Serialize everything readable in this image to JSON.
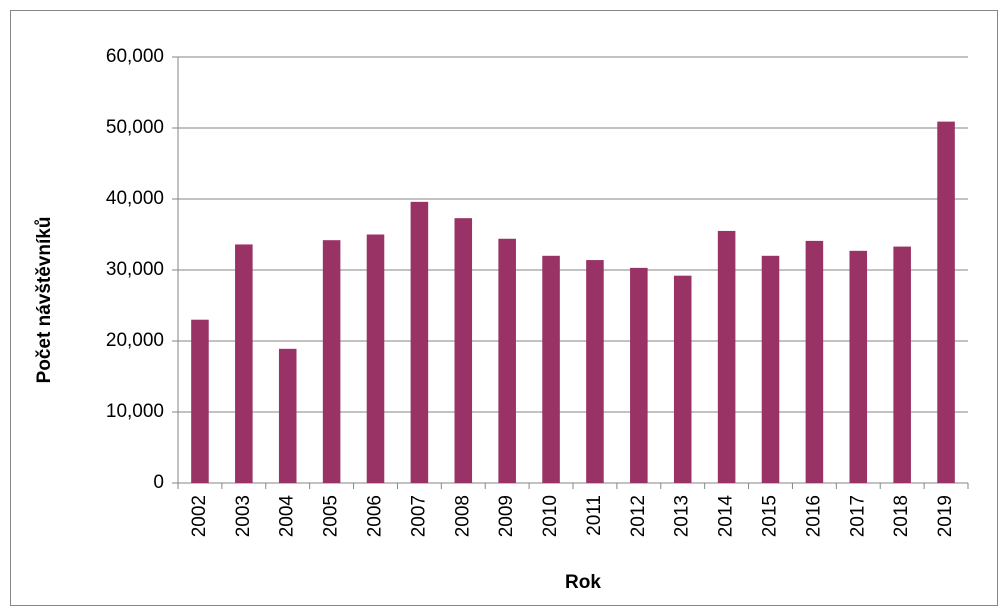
{
  "chart_data": {
    "type": "bar",
    "xlabel": "Rok",
    "ylabel": "Počet návštěvníků",
    "categories": [
      "2002",
      "2003",
      "2004",
      "2005",
      "2006",
      "2007",
      "2008",
      "2009",
      "2010",
      "2011",
      "2012",
      "2013",
      "2014",
      "2015",
      "2016",
      "2017",
      "2018",
      "2019"
    ],
    "values": [
      23000,
      33600,
      18900,
      34200,
      35000,
      39600,
      37300,
      34400,
      32000,
      31400,
      30300,
      29200,
      35500,
      32000,
      34100,
      32700,
      33300,
      50900
    ],
    "color": "#993366",
    "ylim": [
      0,
      60000
    ],
    "yticks": [
      0,
      {
        "value": 10000,
        "label": "10,000"
      },
      {
        "value": 20000,
        "label": "20,000"
      },
      {
        "value": 30000,
        "label": "30,000"
      },
      {
        "value": 40000,
        "label": "40,000"
      },
      {
        "value": 50000,
        "label": "50,000"
      },
      {
        "value": 60000,
        "label": "60,000"
      }
    ],
    "grid": true
  }
}
